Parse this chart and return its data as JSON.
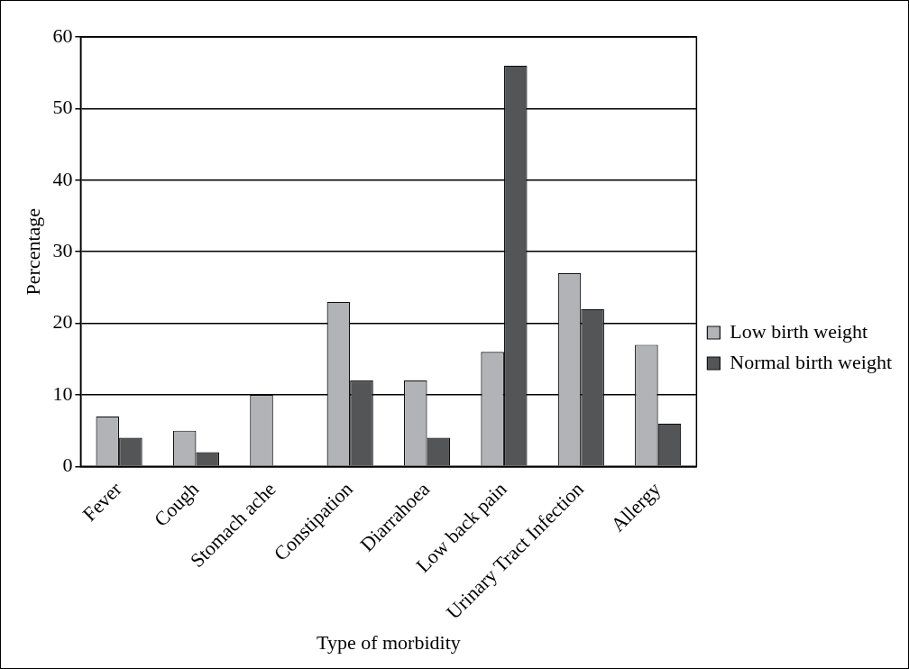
{
  "chart_data": {
    "type": "bar",
    "xlabel": "Type of morbidity",
    "ylabel": "Percentage",
    "categories": [
      "Fever",
      "Cough",
      "Stomach ache",
      "Constipation",
      "Diarrahoea",
      "Low back pain",
      "Urinary Tract Infection",
      "Allergy"
    ],
    "series": [
      {
        "name": "Low birth weight",
        "color": "#b2b3b6",
        "values": [
          7,
          5,
          10,
          23,
          12,
          16,
          27,
          17
        ]
      },
      {
        "name": "Normal birth weight",
        "color": "#545556",
        "values": [
          4,
          2,
          0,
          12,
          4,
          56,
          22,
          6
        ]
      }
    ],
    "ylim": [
      0,
      60
    ],
    "yticks": [
      0,
      10,
      20,
      30,
      40,
      50,
      60
    ],
    "grid": "y",
    "legend": "right"
  }
}
